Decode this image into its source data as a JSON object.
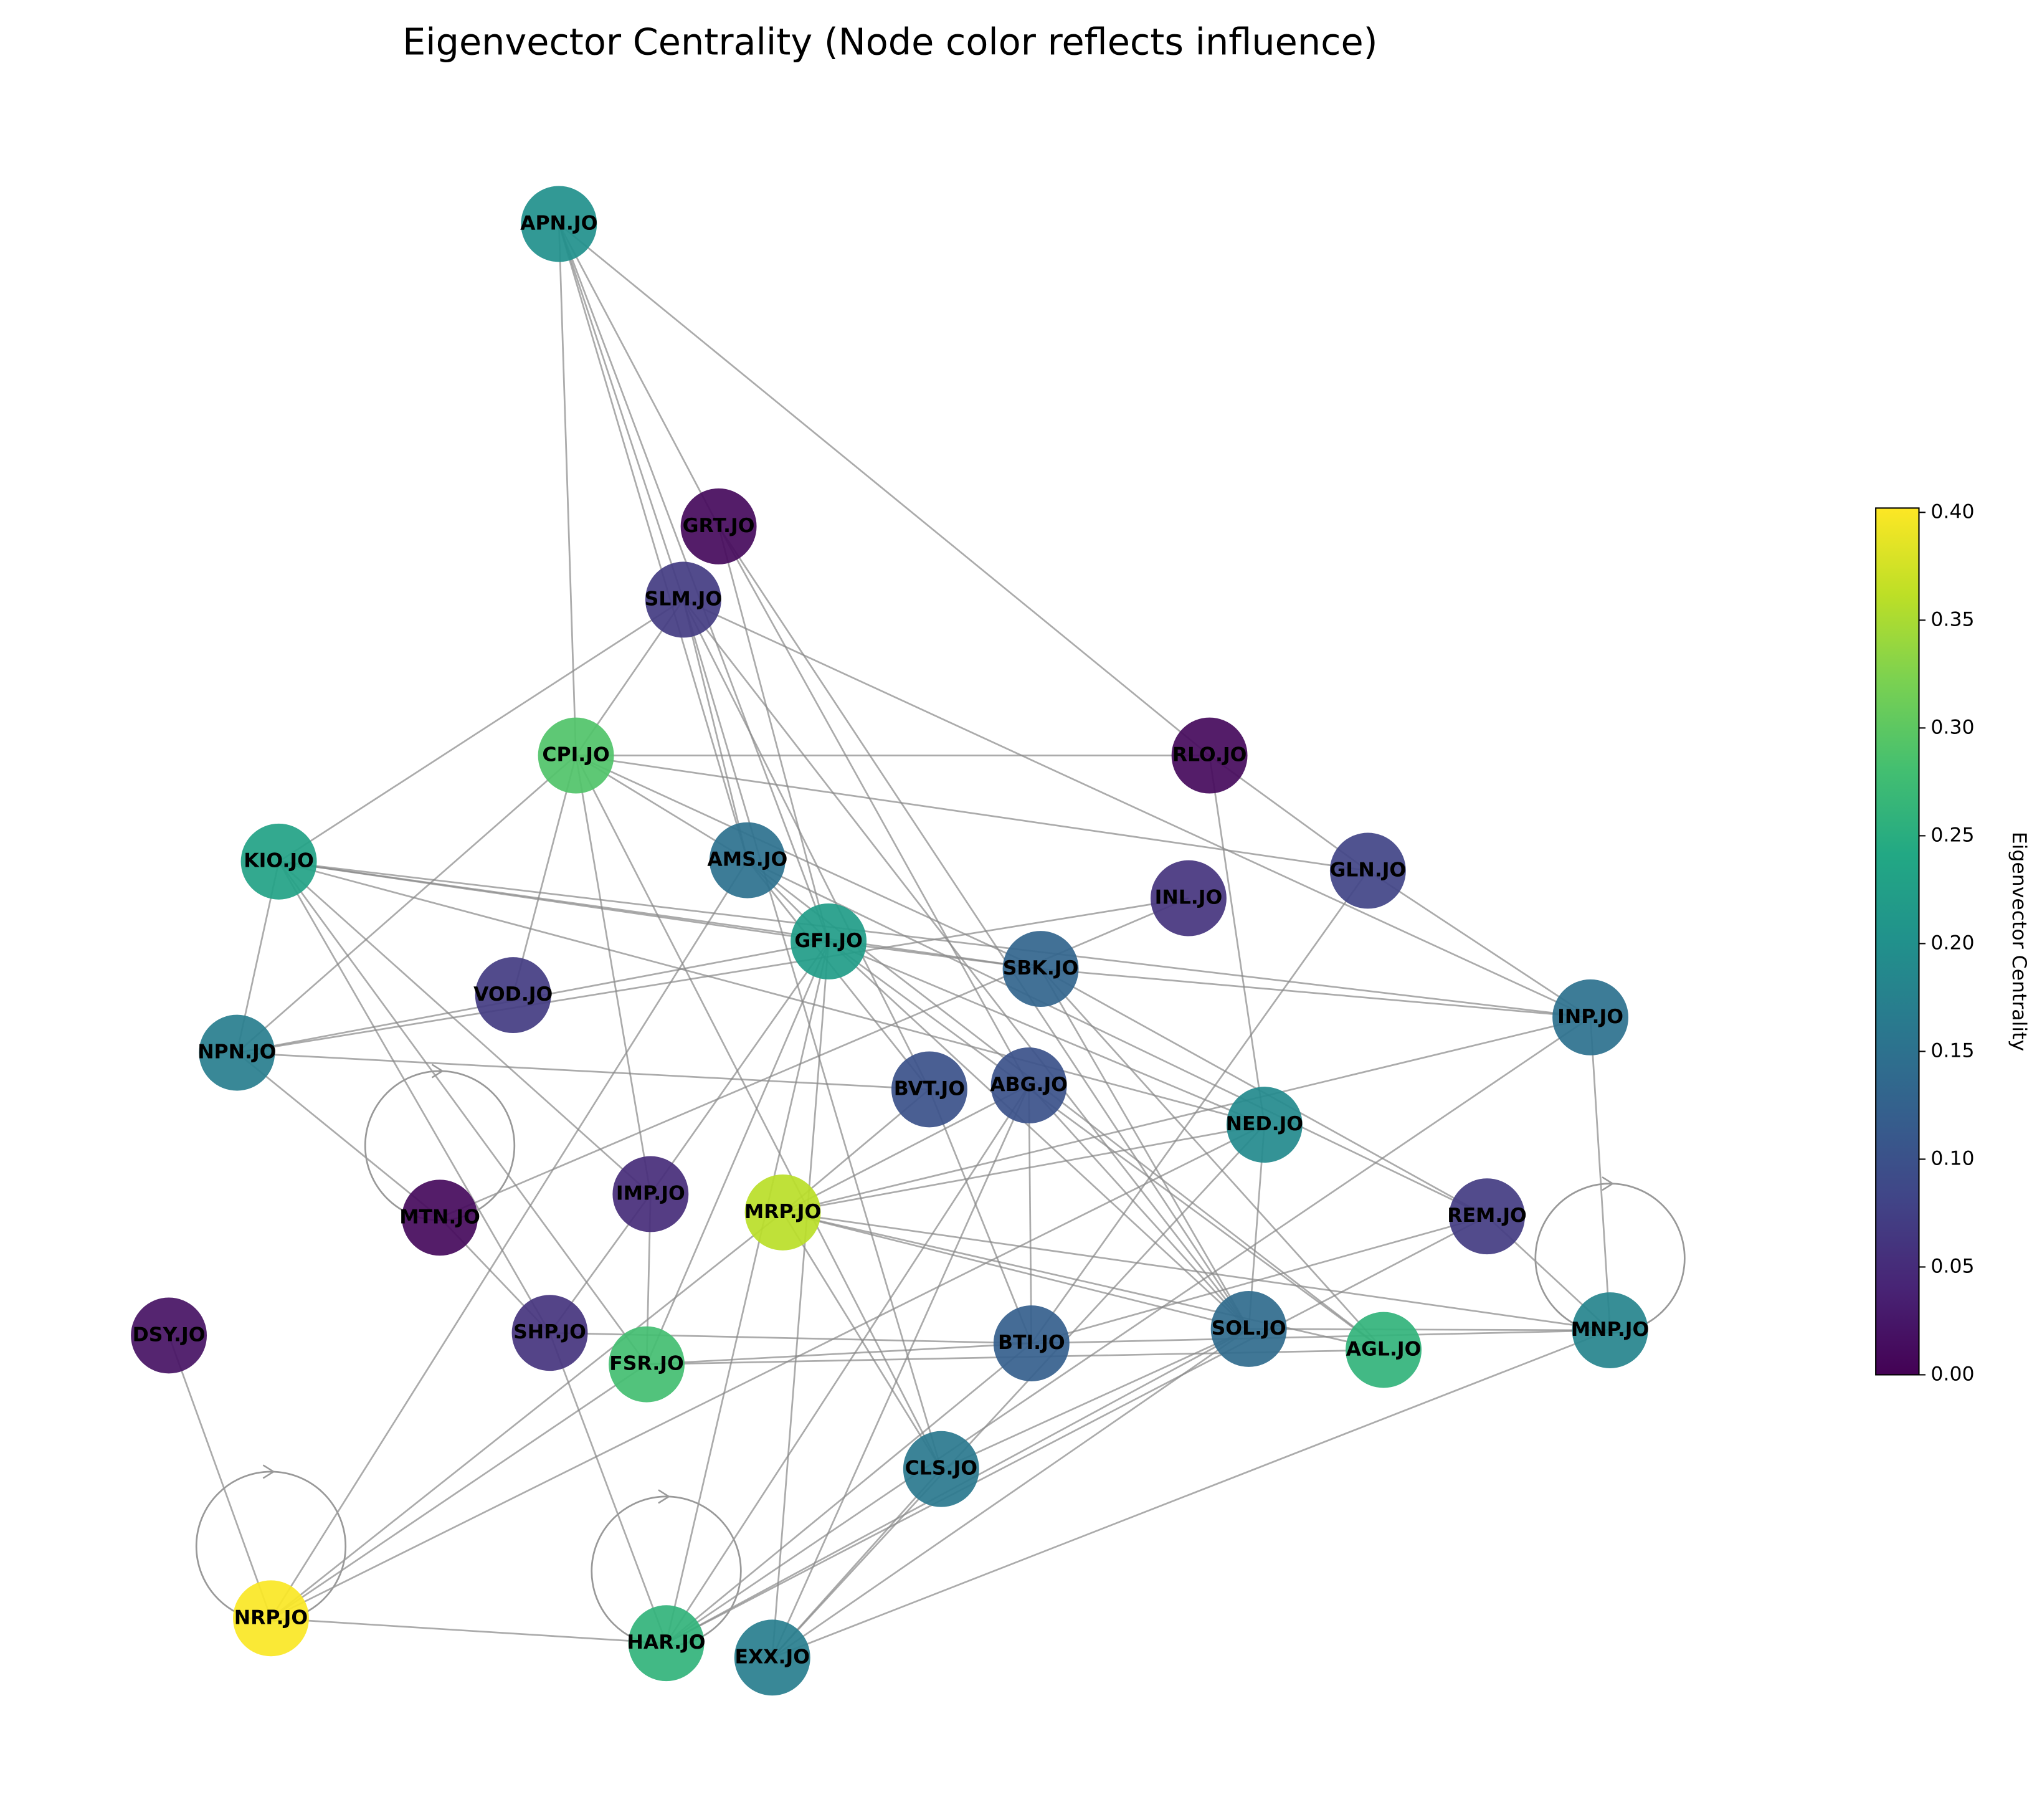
{
  "chart_data": {
    "type": "network",
    "title": "Eigenvector Centrality (Node color reflects influence)",
    "colorbar_label": "Eigenvector Centrality",
    "colormap": "viridis",
    "clim": [
      0,
      0.402
    ],
    "cticks": [
      {
        "value": 0,
        "label": "0.00"
      },
      {
        "value": 0.05,
        "label": "0.05"
      },
      {
        "value": 0.1,
        "label": "0.10"
      },
      {
        "value": 0.15,
        "label": "0.15"
      },
      {
        "value": 0.2,
        "label": "0.20"
      },
      {
        "value": 0.25,
        "label": "0.25"
      },
      {
        "value": 0.3,
        "label": "0.30"
      },
      {
        "value": 0.35,
        "label": "0.35"
      },
      {
        "value": 0.4,
        "label": "0.40"
      }
    ],
    "nodes": [
      {
        "label": "APN.JO",
        "value": 0.2
      },
      {
        "label": "GRT.JO",
        "value": 0.01
      },
      {
        "label": "SLM.JO",
        "value": 0.07
      },
      {
        "label": "CPI.JO",
        "value": 0.29
      },
      {
        "label": "RLO.JO",
        "value": 0.01
      },
      {
        "label": "KIO.JO",
        "value": 0.23
      },
      {
        "label": "AMS.JO",
        "value": 0.15
      },
      {
        "label": "GLN.JO",
        "value": 0.08
      },
      {
        "label": "INL.JO",
        "value": 0.06
      },
      {
        "label": "GFI.JO",
        "value": 0.22
      },
      {
        "label": "SBK.JO",
        "value": 0.13
      },
      {
        "label": "VOD.JO",
        "value": 0.07
      },
      {
        "label": "INP.JO",
        "value": 0.15
      },
      {
        "label": "NPN.JO",
        "value": 0.17
      },
      {
        "label": "BVT.JO",
        "value": 0.1
      },
      {
        "label": "ABG.JO",
        "value": 0.1
      },
      {
        "label": "NED.JO",
        "value": 0.19
      },
      {
        "label": "IMP.JO",
        "value": 0.05
      },
      {
        "label": "MTN.JO",
        "value": 0.01
      },
      {
        "label": "MRP.JO",
        "value": 0.36
      },
      {
        "label": "REM.JO",
        "value": 0.07
      },
      {
        "label": "DSY.JO",
        "value": 0.02
      },
      {
        "label": "SHP.JO",
        "value": 0.06
      },
      {
        "label": "SOL.JO",
        "value": 0.14
      },
      {
        "label": "BTI.JO",
        "value": 0.12
      },
      {
        "label": "AGL.JO",
        "value": 0.26
      },
      {
        "label": "MNP.JO",
        "value": 0.18
      },
      {
        "label": "FSR.JO",
        "value": 0.28
      },
      {
        "label": "CLS.JO",
        "value": 0.16
      },
      {
        "label": "NRP.JO",
        "value": 0.4
      },
      {
        "label": "HAR.JO",
        "value": 0.26
      },
      {
        "label": "EXX.JO",
        "value": 0.17
      }
    ],
    "edges": [
      [
        0,
        3
      ],
      [
        0,
        2
      ],
      [
        0,
        6
      ],
      [
        0,
        1
      ],
      [
        0,
        4
      ],
      [
        0,
        9
      ],
      [
        1,
        15
      ],
      [
        1,
        23
      ],
      [
        1,
        9
      ],
      [
        2,
        5
      ],
      [
        2,
        3
      ],
      [
        2,
        6
      ],
      [
        2,
        14
      ],
      [
        2,
        28
      ],
      [
        2,
        12
      ],
      [
        2,
        23
      ],
      [
        3,
        4
      ],
      [
        3,
        7
      ],
      [
        3,
        11
      ],
      [
        3,
        13
      ],
      [
        3,
        17
      ],
      [
        3,
        6
      ],
      [
        3,
        10
      ],
      [
        3,
        28
      ],
      [
        4,
        7
      ],
      [
        4,
        16
      ],
      [
        5,
        13
      ],
      [
        5,
        9
      ],
      [
        5,
        12
      ],
      [
        5,
        10
      ],
      [
        5,
        22
      ],
      [
        5,
        17
      ],
      [
        5,
        16
      ],
      [
        5,
        27
      ],
      [
        6,
        9
      ],
      [
        6,
        14
      ],
      [
        6,
        20
      ],
      [
        6,
        25
      ],
      [
        6,
        29
      ],
      [
        7,
        12
      ],
      [
        7,
        24
      ],
      [
        8,
        13
      ],
      [
        8,
        18
      ],
      [
        9,
        13
      ],
      [
        9,
        17
      ],
      [
        9,
        27
      ],
      [
        9,
        31
      ],
      [
        9,
        16
      ],
      [
        9,
        23
      ],
      [
        9,
        25
      ],
      [
        9,
        10
      ],
      [
        9,
        30
      ],
      [
        10,
        12
      ],
      [
        10,
        20
      ],
      [
        10,
        23
      ],
      [
        10,
        25
      ],
      [
        12,
        19
      ],
      [
        12,
        26
      ],
      [
        12,
        30
      ],
      [
        13,
        14
      ],
      [
        13,
        18
      ],
      [
        14,
        24
      ],
      [
        14,
        19
      ],
      [
        15,
        24
      ],
      [
        15,
        23
      ],
      [
        15,
        19
      ],
      [
        15,
        30
      ],
      [
        15,
        31
      ],
      [
        16,
        19
      ],
      [
        16,
        23
      ],
      [
        16,
        29
      ],
      [
        16,
        31
      ],
      [
        17,
        22
      ],
      [
        17,
        27
      ],
      [
        18,
        22
      ],
      [
        19,
        29
      ],
      [
        19,
        23
      ],
      [
        19,
        26
      ],
      [
        19,
        28
      ],
      [
        19,
        25
      ],
      [
        20,
        24
      ],
      [
        20,
        30
      ],
      [
        20,
        26
      ],
      [
        21,
        29
      ],
      [
        22,
        24
      ],
      [
        22,
        30
      ],
      [
        23,
        30
      ],
      [
        23,
        28
      ],
      [
        23,
        31
      ],
      [
        23,
        26
      ],
      [
        24,
        27
      ],
      [
        24,
        26
      ],
      [
        24,
        30
      ],
      [
        25,
        27
      ],
      [
        26,
        31
      ],
      [
        28,
        31
      ],
      [
        29,
        30
      ],
      [
        27,
        29
      ],
      [
        18,
        18
      ],
      [
        26,
        26
      ],
      [
        29,
        29
      ],
      [
        30,
        30
      ]
    ]
  }
}
